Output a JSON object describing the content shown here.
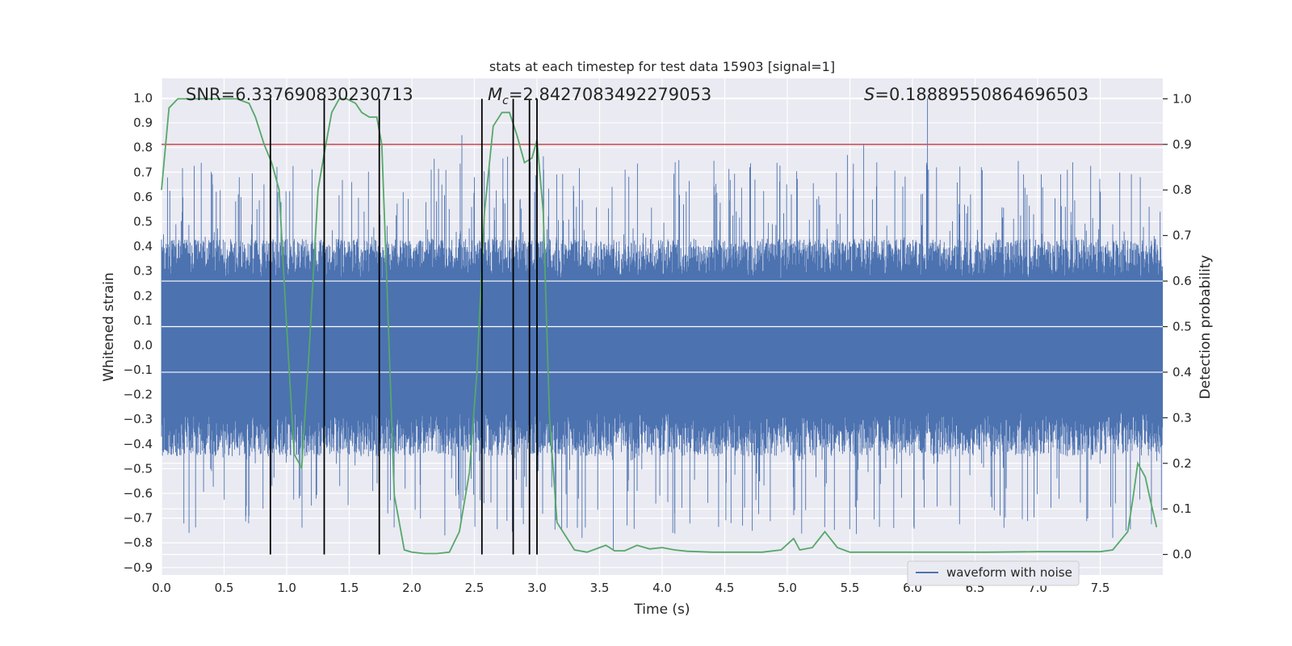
{
  "chart_data": {
    "type": "line",
    "title": "stats at each timestep for test data 15903 [signal=1]",
    "xlabel": "Time (s)",
    "ylabel": "Whitened strain",
    "y2label": "Detection probability",
    "xlim": [
      0.0,
      8.0
    ],
    "ylim": [
      -0.93,
      1.08
    ],
    "y2lim": [
      -0.045,
      1.045
    ],
    "x_ticks": [
      "0.0",
      "0.5",
      "1.0",
      "1.5",
      "2.0",
      "2.5",
      "3.0",
      "3.5",
      "4.0",
      "4.5",
      "5.0",
      "5.5",
      "6.0",
      "6.5",
      "7.0",
      "7.5"
    ],
    "y_ticks": [
      "1.0",
      "0.9",
      "0.8",
      "0.7",
      "0.6",
      "0.5",
      "0.4",
      "0.3",
      "0.2",
      "0.1",
      "0.0",
      "−0.1",
      "−0.2",
      "−0.3",
      "−0.4",
      "−0.5",
      "−0.6",
      "−0.7",
      "−0.8",
      "−0.9"
    ],
    "y2_ticks": [
      "1.0",
      "0.9",
      "0.8",
      "0.7",
      "0.6",
      "0.5",
      "0.4",
      "0.3",
      "0.2",
      "0.1",
      "0.0"
    ],
    "grid": true,
    "legend_position": "lower-right",
    "annotations": {
      "snr": "SNR=6.337690830230713",
      "mc_symbol": "M",
      "mc_sub": "c",
      "mc_value": "=2.8427083492279053",
      "s_symbol": "S",
      "s_value": "=0.18889550864696503"
    },
    "threshold_probability": 0.9,
    "vertical_markers_s": [
      0.87,
      1.3,
      1.74,
      2.56,
      2.81,
      2.94,
      3.0
    ],
    "series": [
      {
        "name": "waveform with noise",
        "axis": "left",
        "color": "#4c72b0",
        "style": "noise",
        "core_amplitude": 0.27,
        "sample_rate_hz": 2048,
        "peak_events": [
          [
            0.22,
            -0.76
          ],
          [
            0.93,
            0.62
          ],
          [
            1.1,
            -0.62
          ],
          [
            1.3,
            0.72
          ],
          [
            1.52,
            0.66
          ],
          [
            2.24,
            0.65
          ],
          [
            2.4,
            0.85
          ],
          [
            2.5,
            0.68
          ],
          [
            2.62,
            0.72
          ],
          [
            3.0,
            0.73
          ],
          [
            3.36,
            -0.78
          ],
          [
            3.61,
            -0.83
          ],
          [
            3.72,
            -0.73
          ],
          [
            4.55,
            -0.72
          ],
          [
            4.7,
            0.72
          ],
          [
            5.48,
            0.77
          ],
          [
            5.61,
            0.81
          ],
          [
            6.12,
            1.0
          ],
          [
            6.55,
            0.72
          ],
          [
            6.7,
            -0.69
          ],
          [
            7.28,
            0.74
          ],
          [
            7.6,
            -0.78
          ],
          [
            7.82,
            0.68
          ],
          [
            4.1,
            -0.68
          ],
          [
            5.85,
            -0.74
          ]
        ]
      },
      {
        "name": "detection probability",
        "axis": "right",
        "color": "#55a868",
        "x": [
          0.0,
          0.06,
          0.13,
          0.2,
          0.4,
          0.6,
          0.7,
          0.75,
          0.82,
          0.88,
          0.94,
          1.0,
          1.06,
          1.12,
          1.18,
          1.25,
          1.3,
          1.36,
          1.42,
          1.48,
          1.55,
          1.6,
          1.66,
          1.72,
          1.76,
          1.8,
          1.86,
          1.94,
          2.0,
          2.1,
          2.2,
          2.3,
          2.38,
          2.46,
          2.52,
          2.58,
          2.65,
          2.72,
          2.78,
          2.84,
          2.9,
          2.96,
          3.0,
          3.05,
          3.1,
          3.16,
          3.3,
          3.4,
          3.55,
          3.62,
          3.7,
          3.8,
          3.9,
          4.0,
          4.1,
          4.2,
          4.4,
          4.6,
          4.8,
          4.95,
          5.05,
          5.1,
          5.2,
          5.3,
          5.4,
          5.5,
          5.8,
          6.2,
          6.6,
          7.0,
          7.5,
          7.6,
          7.72,
          7.76,
          7.8,
          7.86,
          7.9,
          7.95
        ],
        "y": [
          0.8,
          0.98,
          1.0,
          1.0,
          1.0,
          1.0,
          0.99,
          0.96,
          0.9,
          0.86,
          0.8,
          0.5,
          0.22,
          0.19,
          0.45,
          0.8,
          0.88,
          0.97,
          1.0,
          1.0,
          0.99,
          0.97,
          0.96,
          0.96,
          0.9,
          0.6,
          0.13,
          0.01,
          0.005,
          0.002,
          0.002,
          0.005,
          0.05,
          0.18,
          0.4,
          0.75,
          0.94,
          0.97,
          0.97,
          0.92,
          0.86,
          0.87,
          0.91,
          0.75,
          0.3,
          0.07,
          0.01,
          0.005,
          0.02,
          0.008,
          0.008,
          0.02,
          0.012,
          0.015,
          0.01,
          0.007,
          0.005,
          0.005,
          0.005,
          0.01,
          0.035,
          0.01,
          0.015,
          0.05,
          0.015,
          0.005,
          0.005,
          0.005,
          0.005,
          0.006,
          0.006,
          0.01,
          0.05,
          0.12,
          0.2,
          0.17,
          0.12,
          0.06
        ]
      },
      {
        "name": "threshold",
        "axis": "right",
        "color": "#c44e52",
        "x": [
          0.0,
          8.0
        ],
        "y": [
          0.9,
          0.9
        ]
      }
    ]
  }
}
